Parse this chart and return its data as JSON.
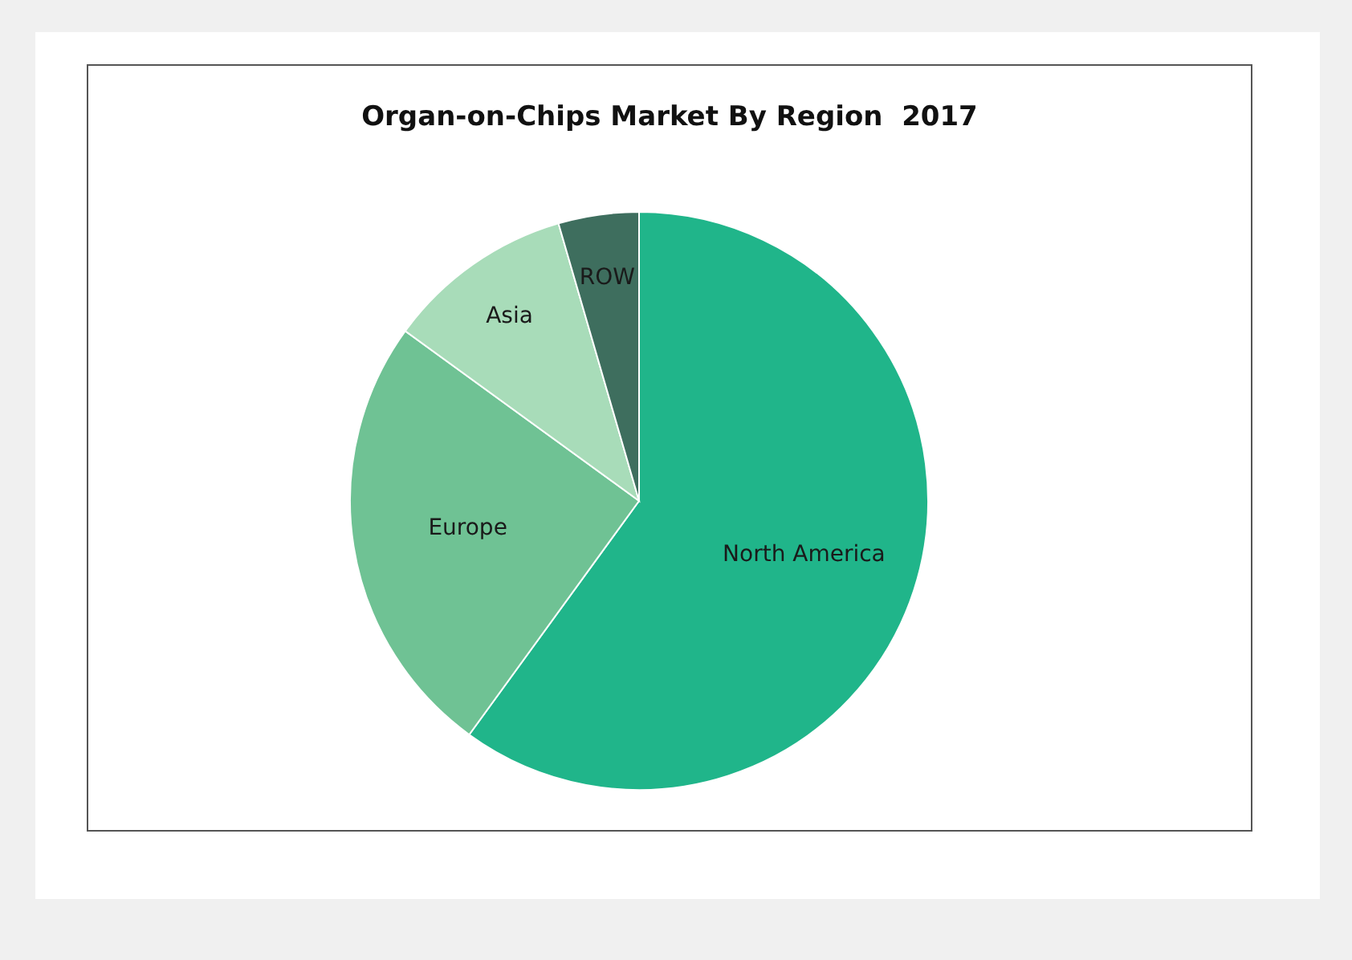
{
  "chart_data": {
    "type": "pie",
    "title": "Organ-on-Chips Market By Region  2017",
    "categories": [
      "North America",
      "Europe",
      "Asia",
      "ROW"
    ],
    "values": [
      60,
      25,
      10.5,
      4.5
    ],
    "colors": [
      "#20b58a",
      "#6fc294",
      "#a8dcb9",
      "#3e6e5e"
    ],
    "legend": false
  }
}
